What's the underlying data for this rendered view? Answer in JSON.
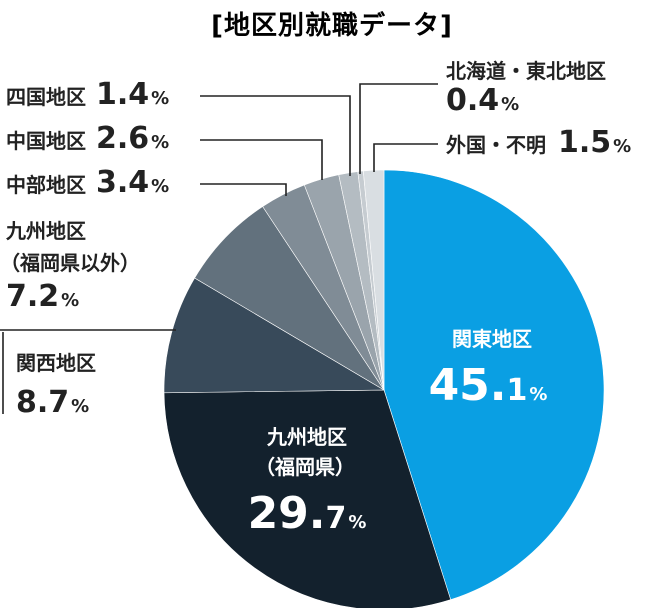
{
  "chart_data": {
    "type": "pie",
    "title": "[地区別就職データ]",
    "unit": "%",
    "slices": [
      {
        "name": "関東地区",
        "value": 45.1,
        "color": "#0a9fe3"
      },
      {
        "name": "九州地区",
        "sub": "（福岡県）",
        "value": 29.7,
        "color": "#13212d"
      },
      {
        "name": "関西地区",
        "value": 8.7,
        "color": "#384a5a"
      },
      {
        "name": "九州地区",
        "sub": "（福岡県以外）",
        "value": 7.2,
        "color": "#62717d"
      },
      {
        "name": "中部地区",
        "value": 3.4,
        "color": "#808c96"
      },
      {
        "name": "中国地区",
        "value": 2.6,
        "color": "#9aa4ac"
      },
      {
        "name": "四国地区",
        "value": 1.4,
        "color": "#b4bcc2"
      },
      {
        "name": "北海道・東北地区",
        "value": 0.4,
        "color": "#c6ccd1"
      },
      {
        "name": "外国・不明",
        "value": 1.5,
        "color": "#d9dee2"
      }
    ]
  }
}
